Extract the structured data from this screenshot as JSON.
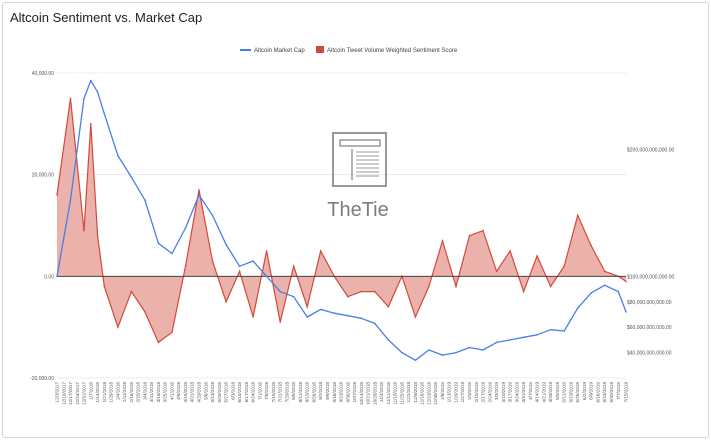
{
  "chart_data": {
    "type": "line",
    "title": "Altcoin Sentiment vs. Market Cap",
    "series": [
      {
        "name": "Altcoin Market Cap",
        "axis": "right",
        "color": "#4a7ee8",
        "x": [
          "12/3/2017",
          "12/17/2017",
          "12/31/2017",
          "1/7/2018",
          "1/14/2018",
          "1/21/2018",
          "2/4/2018",
          "2/18/2018",
          "3/4/2018",
          "3/18/2018",
          "4/1/2018",
          "4/15/2018",
          "4/29/2018",
          "5/13/2018",
          "5/27/2018",
          "6/10/2018",
          "6/24/2018",
          "7/8/2018",
          "7/22/2018",
          "8/5/2018",
          "8/19/2018",
          "9/2/2018",
          "9/16/2018",
          "9/30/2018",
          "10/14/2018",
          "10/28/2018",
          "11/11/2018",
          "11/25/2018",
          "12/9/2018",
          "12/23/2018",
          "1/6/2019",
          "1/20/2019",
          "2/3/2019",
          "2/17/2019",
          "3/3/2019",
          "3/17/2019",
          "3/31/2019",
          "4/14/2019",
          "4/28/2019",
          "5/12/2019",
          "5/26/2019",
          "6/9/2019",
          "6/23/2019",
          "7/7/2019",
          "7/15/2019"
        ],
        "values": [
          100000000000,
          160000000000,
          240000000000,
          254000000000,
          245000000000,
          228000000000,
          195000000000,
          178000000000,
          160000000000,
          126000000000,
          118000000000,
          138000000000,
          164000000000,
          148000000000,
          125000000000,
          108000000000,
          112000000000,
          100000000000,
          88000000000,
          84000000000,
          68000000000,
          74000000000,
          71000000000,
          69000000000,
          67000000000,
          63000000000,
          50000000000,
          40000000000,
          34000000000,
          42000000000,
          38000000000,
          40000000000,
          44000000000,
          42000000000,
          48000000000,
          50000000000,
          52000000000,
          54000000000,
          58000000000,
          57000000000,
          75000000000,
          87000000000,
          93000000000,
          88000000000,
          72000000000
        ]
      },
      {
        "name": "Altcoin Tweet Volume Weighted Sentiment Score",
        "axis": "left",
        "color": "#d5483c",
        "x": [
          "12/3/2017",
          "12/17/2017",
          "12/31/2017",
          "1/7/2018",
          "1/14/2018",
          "1/21/2018",
          "2/4/2018",
          "2/18/2018",
          "3/4/2018",
          "3/18/2018",
          "4/1/2018",
          "4/15/2018",
          "4/29/2018",
          "5/13/2018",
          "5/27/2018",
          "6/10/2018",
          "6/24/2018",
          "7/8/2018",
          "7/22/2018",
          "8/5/2018",
          "8/19/2018",
          "9/2/2018",
          "9/16/2018",
          "9/30/2018",
          "10/14/2018",
          "10/28/2018",
          "11/11/2018",
          "11/25/2018",
          "12/9/2018",
          "12/23/2018",
          "1/6/2019",
          "1/20/2019",
          "2/3/2019",
          "2/17/2019",
          "3/3/2019",
          "3/17/2019",
          "3/31/2019",
          "4/14/2019",
          "4/28/2019",
          "5/12/2019",
          "5/26/2019",
          "6/9/2019",
          "6/23/2019",
          "7/7/2019",
          "7/15/2019"
        ],
        "values": [
          16000,
          35000,
          9000,
          30000,
          8000,
          -2000,
          -10000,
          -3000,
          -7000,
          -13000,
          -11000,
          2000,
          17000,
          3000,
          -5000,
          1000,
          -8000,
          5000,
          -9000,
          2000,
          -6000,
          5000,
          0,
          -4000,
          -3000,
          -3000,
          -6000,
          0,
          -8000,
          -2000,
          7000,
          -2000,
          8000,
          9000,
          1000,
          5000,
          -3000,
          4000,
          -2000,
          2000,
          12000,
          6000,
          1000,
          0,
          -1000
        ]
      }
    ],
    "y_left": {
      "ylim": [
        -20000,
        40000
      ],
      "ticks": [
        "40,000.00",
        "20,000.00",
        "0.00",
        "-20,000.00"
      ]
    },
    "y_right": {
      "ylim": [
        20000000000,
        260000000000
      ],
      "ticks": [
        "$200,000,000,000.00",
        "$100,000,000,000.00",
        "$80,000,000,000.00",
        "$60,000,000,000.00",
        "$40,000,000,000.00"
      ]
    },
    "x_ticks": [
      "12/3/2017",
      "12/10/2017",
      "12/17/2017",
      "12/24/2017",
      "12/31/2017",
      "1/7/2018",
      "1/14/2018",
      "1/21/2018",
      "1/28/2018",
      "2/4/2018",
      "2/11/2018",
      "2/18/2018",
      "2/25/2018",
      "3/4/2018",
      "3/11/2018",
      "3/18/2018",
      "3/25/2018",
      "4/1/2018",
      "4/8/2018",
      "4/15/2018",
      "4/22/2018",
      "4/29/2018",
      "5/6/2018",
      "5/13/2018",
      "5/20/2018",
      "5/27/2018",
      "6/3/2018",
      "6/10/2018",
      "6/17/2018",
      "6/24/2018",
      "7/1/2018",
      "7/8/2018",
      "7/15/2018",
      "7/22/2018",
      "7/29/2018",
      "8/5/2018",
      "8/12/2018",
      "8/19/2018",
      "8/26/2018",
      "9/2/2018",
      "9/9/2018",
      "9/16/2018",
      "9/23/2018",
      "9/30/2018",
      "10/7/2018",
      "10/14/2018",
      "10/21/2018",
      "10/28/2018",
      "11/4/2018",
      "11/11/2018",
      "11/18/2018",
      "11/25/2018",
      "12/2/2018",
      "12/9/2018",
      "12/16/2018",
      "12/23/2018",
      "12/30/2018",
      "1/6/2019",
      "1/13/2019",
      "1/20/2019",
      "1/27/2019",
      "2/3/2019",
      "2/10/2019",
      "2/17/2019",
      "2/24/2019",
      "3/3/2019",
      "3/10/2019",
      "3/17/2019",
      "3/24/2019",
      "3/31/2019",
      "4/7/2019",
      "4/14/2019",
      "4/21/2019",
      "4/28/2019",
      "5/5/2019",
      "5/12/2019",
      "5/19/2019",
      "5/26/2019",
      "6/2/2019",
      "6/9/2019",
      "6/16/2019",
      "6/23/2019",
      "6/30/2019",
      "7/7/2019",
      "7/15/2019"
    ],
    "legend_position": "top-center",
    "grid": true
  },
  "watermark": {
    "text": "TheTie"
  }
}
